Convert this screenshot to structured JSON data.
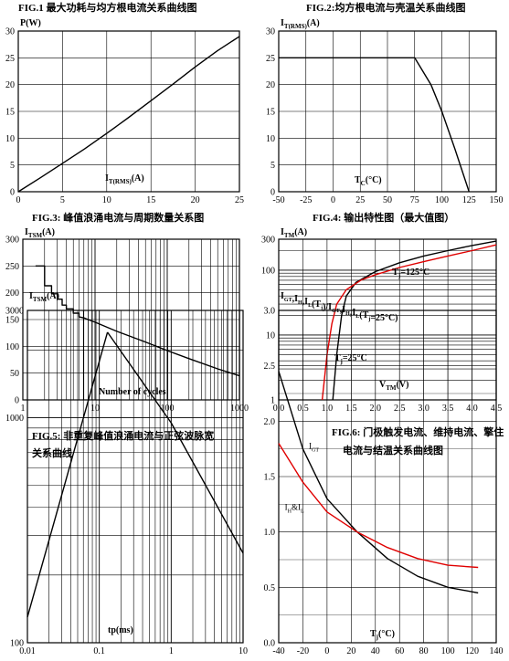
{
  "chart_data": [
    {
      "id": "fig1",
      "type": "line",
      "caption": "FIG.1  最大功耗与均方根电流关系曲线图",
      "ylabel_main": "P(W)",
      "xlabel_main": "I",
      "xlabel_sub": "T(RMS)",
      "xlabel_tail": "(A)",
      "xlim": [
        0,
        25
      ],
      "ylim": [
        0,
        30
      ],
      "xscale": "linear",
      "yscale": "linear",
      "xticks": [
        0,
        5,
        10,
        15,
        20,
        25
      ],
      "yticks": [
        0,
        5,
        10,
        15,
        20,
        25,
        30
      ],
      "xtick_labels": [
        "0",
        "5",
        "10",
        "15",
        "20",
        "25"
      ],
      "ytick_labels": [
        "0",
        "5",
        "10",
        "15",
        "20",
        "25",
        "30"
      ],
      "grid": true,
      "series": [
        {
          "color": "#000000",
          "x": [
            0,
            2.5,
            5,
            7.5,
            10,
            12.5,
            15,
            17.5,
            20,
            22.5,
            25
          ],
          "y": [
            0,
            2.6,
            5.3,
            8.0,
            10.9,
            13.9,
            17.0,
            20.1,
            23.3,
            26.3,
            29.0
          ]
        }
      ]
    },
    {
      "id": "fig2",
      "type": "line",
      "caption": "FIG.2:均方根电流与壳温关系曲线图",
      "ylabel_main": "I",
      "ylabel_sub": "T(RMS)",
      "ylabel_tail": "(A)",
      "xlabel_main": "T",
      "xlabel_sub": "C",
      "xlabel_tail": "(°C)",
      "xlim": [
        -50,
        150
      ],
      "ylim": [
        0,
        30
      ],
      "xscale": "linear",
      "yscale": "linear",
      "xticks": [
        -50,
        -25,
        0,
        25,
        50,
        75,
        100,
        125,
        150
      ],
      "yticks": [
        0,
        5,
        10,
        15,
        20,
        25,
        30
      ],
      "xtick_labels": [
        "-50",
        "-25",
        "0",
        "25",
        "50",
        "75",
        "100",
        "125",
        "150"
      ],
      "ytick_labels": [
        "0",
        "5",
        "10",
        "15",
        "20",
        "25",
        "30"
      ],
      "grid": true,
      "series": [
        {
          "color": "#000000",
          "x": [
            -50,
            75,
            90,
            100,
            112,
            125
          ],
          "y": [
            25,
            25,
            20,
            15,
            8,
            0
          ]
        }
      ]
    },
    {
      "id": "fig3",
      "type": "line",
      "caption": "FIG.3:  峰值浪涌电流与周期数量关系图",
      "ylabel_main": "I",
      "ylabel_sub": "TSM",
      "ylabel_tail": "(A)",
      "xlabel_main": "Number of cycles",
      "xlim": [
        1,
        1000
      ],
      "ylim": [
        0,
        300
      ],
      "xscale": "log",
      "yscale": "linear",
      "xticks": [
        1,
        10,
        100,
        1000
      ],
      "yticks": [
        0,
        50,
        100,
        150,
        200,
        250,
        300
      ],
      "xtick_labels": [
        "1",
        "10",
        "100",
        "1000"
      ],
      "ytick_labels": [
        "0",
        "50",
        "100",
        "150",
        "200",
        "250",
        "300"
      ],
      "grid": true,
      "series": [
        {
          "color": "#000000",
          "x": [
            1.5,
            2,
            2,
            2.5,
            2.5,
            3,
            3,
            3.5,
            3.5,
            4,
            4,
            5,
            5,
            6,
            6,
            7,
            8,
            10,
            20,
            50,
            100,
            200,
            500,
            1000
          ],
          "y": [
            250,
            250,
            213,
            213,
            198,
            198,
            188,
            188,
            177,
            177,
            170,
            170,
            162,
            162,
            155,
            153,
            150,
            145,
            128,
            108,
            92,
            77,
            58,
            45
          ]
        }
      ]
    },
    {
      "id": "fig4",
      "type": "line",
      "caption": "FIG.4:  输出特性图（最大值图）",
      "ylabel_main": "I",
      "ylabel_sub": "TM",
      "ylabel_tail": "(A)",
      "xlabel_main": "V",
      "xlabel_sub": "TM",
      "xlabel_tail": "(V)",
      "xlim": [
        0,
        4.5
      ],
      "ylim": [
        1,
        300
      ],
      "xscale": "linear",
      "yscale": "log",
      "xticks": [
        0,
        0.5,
        1,
        1.5,
        2,
        2.5,
        3,
        3.5,
        4,
        4.5
      ],
      "yticks": [
        1,
        10,
        100,
        300
      ],
      "xtick_labels": [
        "0.0",
        "0.5",
        "1.0",
        "1.5",
        "2.0",
        "2.5",
        "3.0",
        "3.5",
        "4.0",
        "4.5"
      ],
      "ytick_labels": [
        "1",
        "10",
        "100",
        "300"
      ],
      "grid": true,
      "annotations": [
        {
          "main": "T",
          "sub": "j",
          "tail": "=125°C",
          "x": 2.35,
          "y": 85
        },
        {
          "main": "T",
          "sub": "j",
          "tail": "=25°C",
          "x": 1.15,
          "y": 4
        }
      ],
      "series": [
        {
          "color": "#000000",
          "x": [
            1.12,
            1.2,
            1.3,
            1.4,
            1.6,
            2.0,
            2.5,
            3.0,
            3.5,
            4.0,
            4.5
          ],
          "y": [
            1,
            5,
            20,
            40,
            65,
            95,
            130,
            165,
            200,
            240,
            280
          ]
        },
        {
          "color": "#e00000",
          "x": [
            0.9,
            1.0,
            1.1,
            1.2,
            1.4,
            1.7,
            2.0,
            2.5,
            3.0,
            3.5,
            4.0,
            4.5
          ],
          "y": [
            1,
            5,
            15,
            30,
            50,
            70,
            85,
            110,
            135,
            165,
            200,
            245
          ]
        }
      ]
    },
    {
      "id": "fig5",
      "type": "line",
      "caption_line1": "FIG.5:  非重复峰值浪涌电流与正弦波脉宽",
      "caption_line2": "关系曲线",
      "ylabel_main": "I",
      "ylabel_sub": "TSM",
      "ylabel_tail": "(A)",
      "xlabel_main": "tp(ms)",
      "xlim": [
        0.01,
        10
      ],
      "ylim": [
        100,
        3000
      ],
      "xscale": "log",
      "yscale": "log",
      "xticks": [
        0.01,
        0.1,
        1,
        10
      ],
      "yticks": [
        100,
        1000,
        3000
      ],
      "xtick_labels": [
        "0.01",
        "0.1",
        "1",
        "10"
      ],
      "ytick_labels": [
        "100",
        "1000",
        "3000"
      ],
      "grid": true,
      "series": [
        {
          "color": "#000000",
          "x": [
            0.01,
            0.13
          ],
          "y": [
            130,
            2400
          ]
        },
        {
          "color": "#000000",
          "x": [
            0.13,
            1,
            10
          ],
          "y": [
            2400,
            950,
            250
          ]
        }
      ]
    },
    {
      "id": "fig6",
      "type": "line",
      "caption_line1": "FIG.6:  门极触发电流、维持电流、擎住",
      "caption_line2": "电流与结温关系曲线图",
      "ylabel_parts": [
        {
          "t": "I",
          "sub": "GT"
        },
        {
          "t": ",I",
          "sub": "H"
        },
        {
          "t": ",I",
          "sub": "L"
        },
        {
          "t": "(T",
          "sub": "j"
        },
        {
          "t": ")/I",
          "sub": "GT"
        },
        {
          "t": ",I",
          "sub": "H"
        },
        {
          "t": ",I",
          "sub": "L"
        },
        {
          "t": "(T",
          "sub": "j"
        },
        {
          "t": "=25°C)",
          "sub": ""
        }
      ],
      "xlabel_main": "T",
      "xlabel_sub": "j",
      "xlabel_tail": "(°C)",
      "xlim": [
        -40,
        140
      ],
      "ylim": [
        0,
        3.0
      ],
      "xscale": "linear",
      "yscale": "linear",
      "xticks": [
        -40,
        -20,
        0,
        20,
        40,
        60,
        80,
        100,
        120,
        140
      ],
      "yticks": [
        0,
        0.5,
        1.0,
        1.5,
        2.0,
        2.5,
        3.0
      ],
      "xtick_labels": [
        "-40",
        "-20",
        "0",
        "20",
        "40",
        "60",
        "80",
        "100",
        "120",
        "140"
      ],
      "ytick_labels": [
        "0.0",
        "0.5",
        "1.0",
        "1.5",
        "2.0",
        "2.5",
        "3.0"
      ],
      "grid": true,
      "annotations": [
        {
          "label": "I",
          "sub": "GT",
          "x": -15,
          "y": 1.75
        },
        {
          "label": "I",
          "sub": "H",
          "label2": "&I",
          "sub2": "L",
          "x": -35,
          "y": 1.2
        }
      ],
      "series": [
        {
          "color": "#000000",
          "x": [
            -40,
            -20,
            0,
            25,
            50,
            75,
            100,
            125
          ],
          "y": [
            2.45,
            1.75,
            1.3,
            1.0,
            0.76,
            0.6,
            0.5,
            0.45
          ]
        },
        {
          "color": "#e00000",
          "x": [
            -40,
            -20,
            0,
            25,
            50,
            75,
            100,
            125
          ],
          "y": [
            1.8,
            1.45,
            1.18,
            1.0,
            0.86,
            0.76,
            0.7,
            0.68
          ]
        }
      ]
    }
  ]
}
